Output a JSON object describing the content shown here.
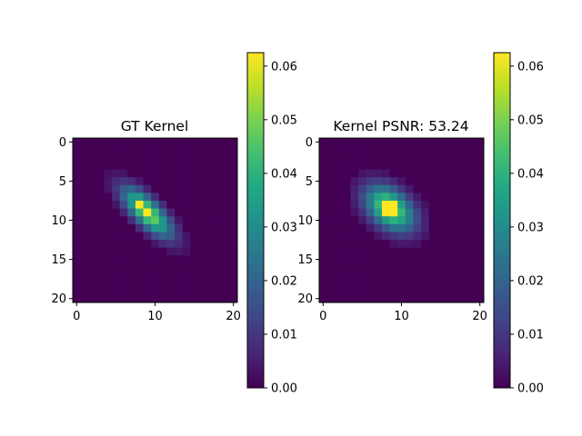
{
  "chart_data": [
    {
      "type": "heatmap",
      "title": "GT Kernel",
      "rows": 21,
      "cols": 21,
      "x_ticks": [
        "0",
        "10",
        "20"
      ],
      "y_ticks": [
        "0",
        "5",
        "10",
        "15",
        "20"
      ],
      "colormap": "viridis",
      "kernel": {
        "cx": 9,
        "cy": 9,
        "sigma_major": 2.9,
        "sigma_minor": 1.1,
        "angle_deg": 45
      },
      "peak_cells": [
        {
          "r": 8,
          "c": 8
        },
        {
          "r": 9,
          "c": 9
        }
      ],
      "colorbar": {
        "min": 0.0,
        "max": 0.0625,
        "ticks": [
          "0.00",
          "0.01",
          "0.02",
          "0.03",
          "0.04",
          "0.05",
          "0.06"
        ]
      }
    },
    {
      "type": "heatmap",
      "title": "Kernel PSNR: 53.24",
      "rows": 21,
      "cols": 21,
      "x_ticks": [
        "0",
        "10",
        "20"
      ],
      "y_ticks": [
        "0",
        "5",
        "10",
        "15",
        "20"
      ],
      "colormap": "viridis",
      "kernel": {
        "cx": 8.5,
        "cy": 8.5,
        "sigma_major": 2.5,
        "sigma_minor": 1.6,
        "angle_deg": 40
      },
      "peak_cells": [
        {
          "r": 8,
          "c": 8
        },
        {
          "r": 8,
          "c": 9
        },
        {
          "r": 9,
          "c": 8
        },
        {
          "r": 9,
          "c": 9
        }
      ],
      "colorbar": {
        "min": 0.0,
        "max": 0.0625,
        "ticks": [
          "0.00",
          "0.01",
          "0.02",
          "0.03",
          "0.04",
          "0.05",
          "0.06"
        ]
      }
    }
  ]
}
